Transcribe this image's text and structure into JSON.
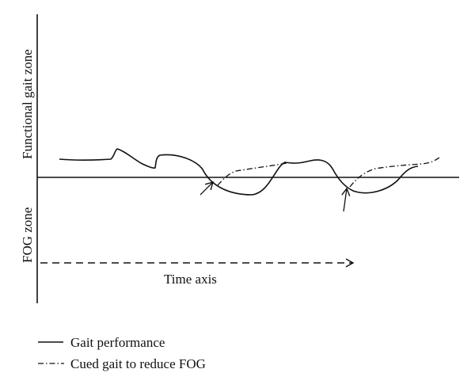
{
  "diagram": {
    "upper_zone_label": "Functional gait zone",
    "lower_zone_label": "FOG zone",
    "time_axis_label": "Time axis",
    "legend": [
      {
        "label": "Gait performance",
        "line_style": "solid"
      },
      {
        "label": "Cued gait to reduce FOG",
        "line_style": "dash-dot"
      }
    ]
  },
  "colors": {
    "ink": "#111111",
    "background": "#ffffff"
  }
}
